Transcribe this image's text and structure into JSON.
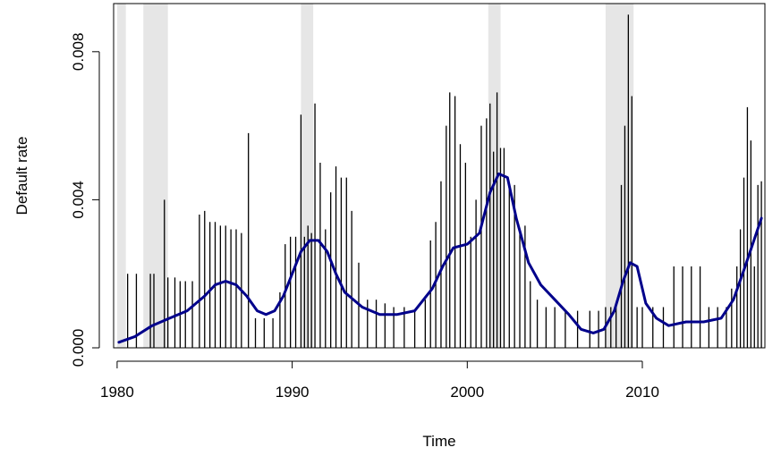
{
  "chart_data": {
    "type": "bar",
    "xlabel": "Time",
    "ylabel": "Default rate",
    "xlim": [
      1979.8,
      2017.0
    ],
    "ylim": [
      0.0,
      0.0093
    ],
    "x_ticks": [
      1980,
      1990,
      2000,
      2010
    ],
    "x_tick_labels": [
      "1980",
      "1990",
      "2000",
      "2010"
    ],
    "y_ticks": [
      0.0,
      0.004,
      0.008
    ],
    "y_tick_labels": [
      "0.000",
      "0.004",
      "0.008"
    ],
    "grid": false,
    "colors": {
      "bars": "#000000",
      "smooth_line": "#00008B",
      "recession": "#E6E6E6"
    },
    "recession_bands": [
      [
        1980.0,
        1980.5
      ],
      [
        1981.5,
        1982.9
      ],
      [
        1990.5,
        1991.2
      ],
      [
        2001.2,
        2001.9
      ],
      [
        2007.9,
        2009.5
      ]
    ],
    "series": [
      {
        "name": "",
        "kind": "bars",
        "x": [
          1980.6,
          1981.1,
          1981.9,
          1982.1,
          1982.7,
          1982.9,
          1983.3,
          1983.6,
          1983.9,
          1984.3,
          1984.7,
          1985.0,
          1985.3,
          1985.6,
          1985.9,
          1986.2,
          1986.5,
          1986.8,
          1987.1,
          1987.5,
          1987.9,
          1988.4,
          1988.9,
          1989.3,
          1989.6,
          1989.9,
          1990.2,
          1990.5,
          1990.7,
          1990.9,
          1991.1,
          1991.3,
          1991.6,
          1991.9,
          1992.2,
          1992.5,
          1992.8,
          1993.1,
          1993.4,
          1993.8,
          1994.3,
          1994.8,
          1995.3,
          1995.8,
          1996.4,
          1997.0,
          1997.6,
          1997.9,
          1998.2,
          1998.5,
          1998.8,
          1999.0,
          1999.3,
          1999.6,
          1999.9,
          2000.2,
          2000.5,
          2000.8,
          2001.1,
          2001.3,
          2001.5,
          2001.7,
          2001.9,
          2002.1,
          2002.4,
          2002.7,
          2003.0,
          2003.3,
          2003.6,
          2004.0,
          2004.5,
          2005.0,
          2005.6,
          2006.3,
          2007.0,
          2007.5,
          2007.9,
          2008.2,
          2008.5,
          2008.8,
          2009.0,
          2009.2,
          2009.4,
          2009.7,
          2010.0,
          2010.6,
          2011.2,
          2011.8,
          2012.3,
          2012.8,
          2013.3,
          2013.8,
          2014.3,
          2014.8,
          2015.1,
          2015.4,
          2015.6,
          2015.8,
          2016.0,
          2016.2,
          2016.4,
          2016.6,
          2016.8
        ],
        "values": [
          0.002,
          0.002,
          0.002,
          0.002,
          0.004,
          0.0019,
          0.0019,
          0.0018,
          0.0018,
          0.0018,
          0.0036,
          0.0037,
          0.0034,
          0.0034,
          0.0033,
          0.0033,
          0.0032,
          0.0032,
          0.0031,
          0.0058,
          0.0008,
          0.0008,
          0.0008,
          0.0015,
          0.0028,
          0.003,
          0.003,
          0.0063,
          0.003,
          0.0033,
          0.0031,
          0.0066,
          0.005,
          0.0032,
          0.0042,
          0.0049,
          0.0046,
          0.0046,
          0.0037,
          0.0023,
          0.0013,
          0.0013,
          0.0012,
          0.0011,
          0.0011,
          0.001,
          0.0013,
          0.0029,
          0.0034,
          0.0045,
          0.006,
          0.0069,
          0.0068,
          0.0055,
          0.005,
          0.003,
          0.004,
          0.006,
          0.0062,
          0.0066,
          0.0053,
          0.0069,
          0.0054,
          0.0054,
          0.0043,
          0.0044,
          0.0032,
          0.0033,
          0.0018,
          0.0013,
          0.0011,
          0.0011,
          0.001,
          0.001,
          0.001,
          0.001,
          0.0011,
          0.0011,
          0.0011,
          0.0044,
          0.006,
          0.009,
          0.0068,
          0.0011,
          0.0011,
          0.0011,
          0.0011,
          0.0022,
          0.0022,
          0.0022,
          0.0022,
          0.0011,
          0.0011,
          0.0011,
          0.0016,
          0.0022,
          0.0032,
          0.0046,
          0.0065,
          0.0056,
          0.0022,
          0.0044,
          0.0045
        ]
      },
      {
        "name": "",
        "kind": "smooth-line",
        "x": [
          1980.1,
          1981.0,
          1982.0,
          1983.0,
          1984.0,
          1985.0,
          1985.6,
          1986.2,
          1986.8,
          1987.4,
          1988.0,
          1988.5,
          1989.0,
          1989.5,
          1990.0,
          1990.5,
          1991.0,
          1991.5,
          1992.0,
          1992.5,
          1993.0,
          1994.0,
          1995.0,
          1996.0,
          1997.0,
          1998.0,
          1998.6,
          1999.2,
          2000.0,
          2000.7,
          2001.3,
          2001.8,
          2002.3,
          2002.8,
          2003.5,
          2004.2,
          2005.0,
          2005.8,
          2006.5,
          2007.2,
          2007.8,
          2008.4,
          2008.9,
          2009.3,
          2009.7,
          2010.2,
          2010.8,
          2011.5,
          2012.5,
          2013.5,
          2014.5,
          2015.2,
          2015.8,
          2016.3,
          2016.8
        ],
        "values": [
          0.00015,
          0.0003,
          0.0006,
          0.0008,
          0.001,
          0.0014,
          0.0017,
          0.0018,
          0.0017,
          0.0014,
          0.001,
          0.0009,
          0.001,
          0.0014,
          0.002,
          0.0026,
          0.0029,
          0.0029,
          0.0026,
          0.002,
          0.0015,
          0.0011,
          0.0009,
          0.0009,
          0.001,
          0.0016,
          0.0022,
          0.0027,
          0.0028,
          0.0031,
          0.0042,
          0.0047,
          0.0046,
          0.0035,
          0.0023,
          0.0017,
          0.0013,
          0.0009,
          0.0005,
          0.0004,
          0.0005,
          0.001,
          0.0018,
          0.0023,
          0.0022,
          0.0012,
          0.0008,
          0.0006,
          0.0007,
          0.0007,
          0.0008,
          0.0013,
          0.0021,
          0.0028,
          0.0035
        ]
      }
    ]
  }
}
